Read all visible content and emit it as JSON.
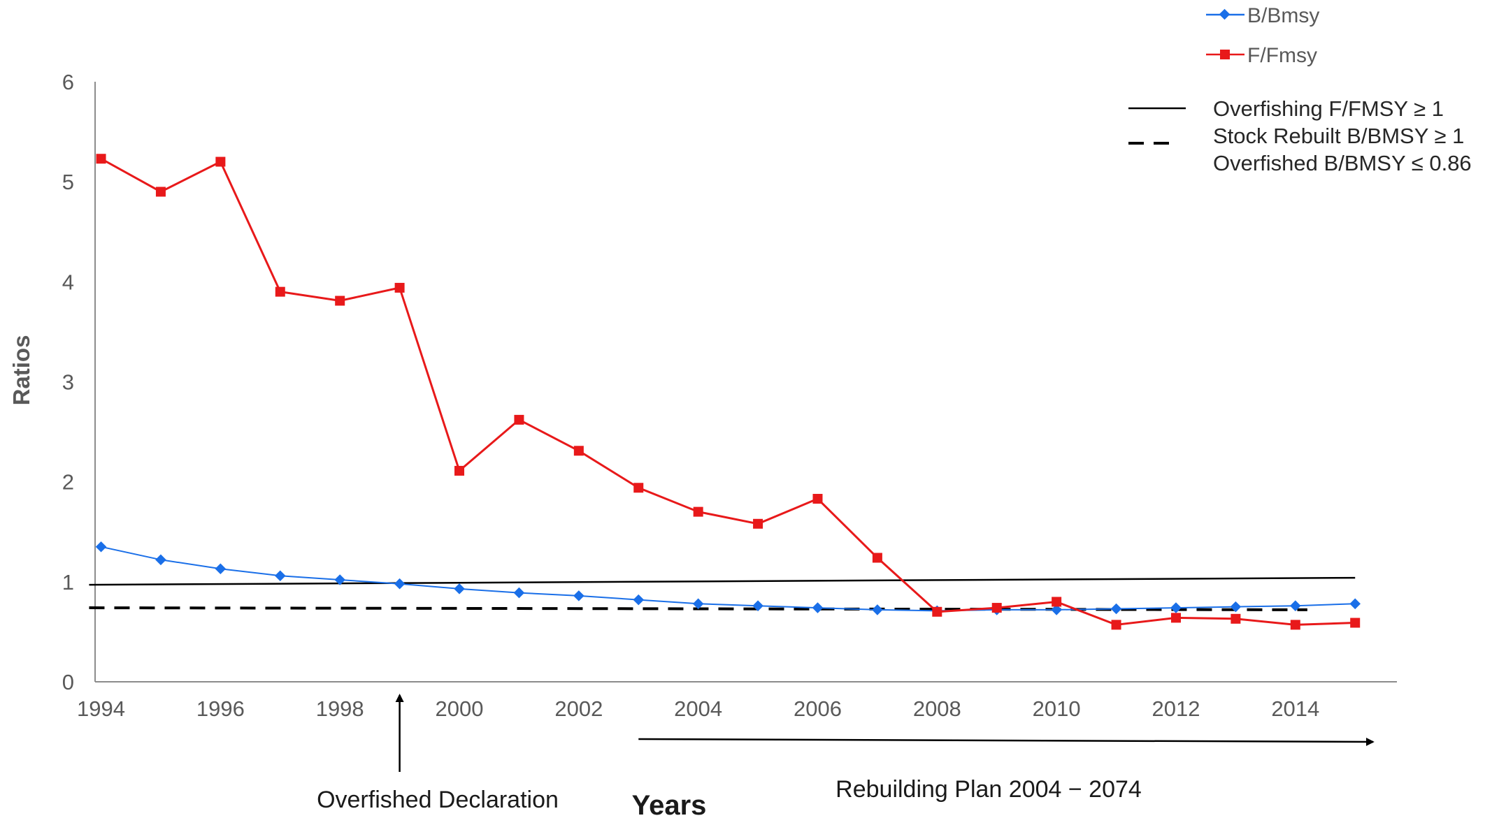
{
  "chart_data": {
    "type": "line",
    "title": "",
    "xlabel": "Years",
    "ylabel": "Ratios",
    "xlim": [
      1993.9,
      2015.7
    ],
    "ylim": [
      0,
      6
    ],
    "yticks": [
      "0",
      "1",
      "2",
      "3",
      "4",
      "5",
      "6"
    ],
    "xticks": [
      "1994",
      "1996",
      "1998",
      "2000",
      "2002",
      "2004",
      "2006",
      "2008",
      "2010",
      "2012",
      "2014"
    ],
    "x": [
      1994,
      1995,
      1996,
      1997,
      1998,
      1999,
      2000,
      2001,
      2002,
      2003,
      2004,
      2005,
      2006,
      2007,
      2008,
      2009,
      2010,
      2011,
      2012,
      2013,
      2014,
      2015
    ],
    "series": [
      {
        "name": "B/Bmsy",
        "color": "#1a6fe8",
        "marker": "diamond",
        "values": [
          1.35,
          1.22,
          1.13,
          1.06,
          1.02,
          0.98,
          0.93,
          0.89,
          0.86,
          0.82,
          0.78,
          0.76,
          0.74,
          0.72,
          0.71,
          0.72,
          0.72,
          0.73,
          0.74,
          0.75,
          0.76,
          0.78
        ]
      },
      {
        "name": "F/Fmsy",
        "color": "#e8191a",
        "marker": "square",
        "values": [
          5.23,
          4.9,
          5.2,
          3.9,
          3.81,
          3.94,
          2.11,
          2.62,
          2.31,
          1.94,
          1.7,
          1.58,
          1.83,
          1.24,
          0.7,
          0.74,
          0.8,
          0.57,
          0.64,
          0.63,
          0.57,
          0.59
        ]
      }
    ],
    "reference_lines": [
      {
        "label": "Overfishing F/FMSY ≥ 1",
        "style": "solid",
        "color": "#000000",
        "x": [
          1993.8,
          2015.0
        ],
        "y": [
          0.97,
          1.04
        ]
      },
      {
        "label": "Stock Rebuilt B/BMSY ≥ 1",
        "style": "dashed",
        "color": "#000000",
        "x": [
          1993.8,
          2014.2
        ],
        "y": [
          0.74,
          0.72
        ]
      },
      {
        "label": "Overfished B/BMSY ≤ 0.86",
        "style": "none"
      }
    ],
    "annotations": {
      "overfished": {
        "text": "Overfished Declaration",
        "x": 1999
      },
      "rebuilding": {
        "text": "Rebuilding Plan 2004 − 2074",
        "x_start": 2003,
        "x_end": 2015.3
      }
    },
    "legend_position": "top-right",
    "grid": false
  }
}
